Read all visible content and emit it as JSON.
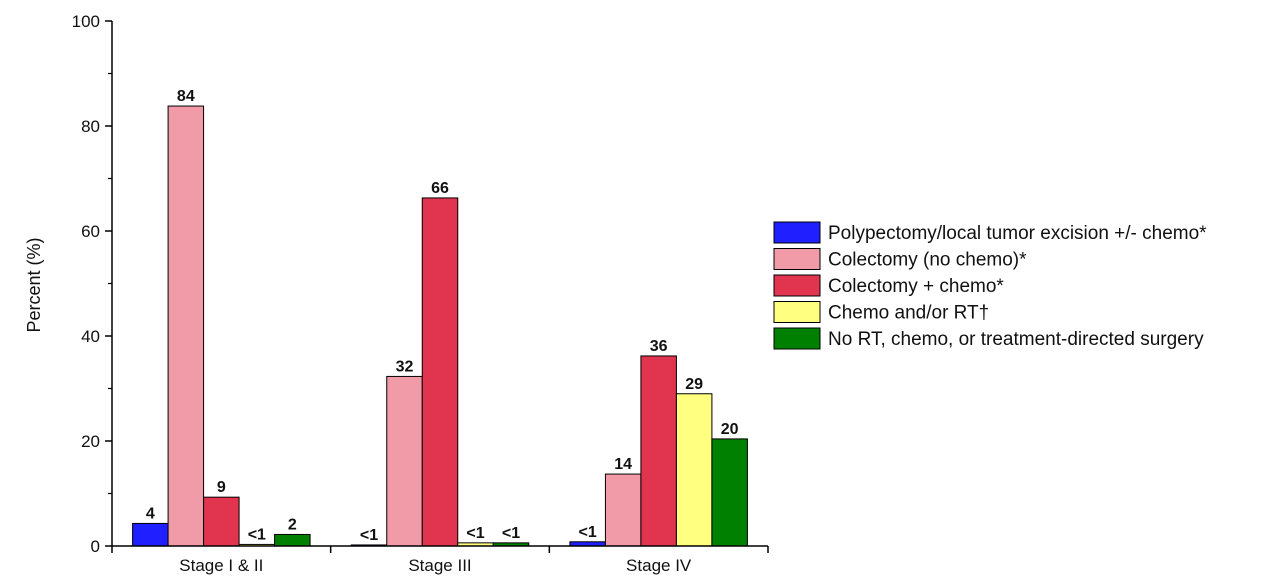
{
  "chart_data": {
    "type": "bar",
    "ylabel": "Percent (%)",
    "xlabel": "",
    "ylim": [
      0,
      100
    ],
    "yticks": [
      "0",
      "20",
      "40",
      "60",
      "80",
      "100"
    ],
    "ytick_values": [
      0,
      20,
      40,
      60,
      80,
      100
    ],
    "grid": false,
    "legend_position": "right",
    "categories": [
      "Stage I & II",
      "Stage III",
      "Stage IV"
    ],
    "series": [
      {
        "name": "Polypectomy/local tumor excision +/- chemo*",
        "color": "#1f1fff",
        "values": [
          4.3,
          0.2,
          0.8
        ],
        "labels": [
          "4",
          "<1",
          "<1"
        ]
      },
      {
        "name": "Colectomy (no chemo)*",
        "color": "#f19aa8",
        "values": [
          83.8,
          32.3,
          13.7
        ],
        "labels": [
          "84",
          "32",
          "14"
        ]
      },
      {
        "name": "Colectomy + chemo*",
        "color": "#e0344f",
        "values": [
          9.3,
          66.3,
          36.2
        ],
        "labels": [
          "9",
          "66",
          "36"
        ]
      },
      {
        "name": "Chemo and/or RT†",
        "color": "#ffff80",
        "values": [
          0.3,
          0.6,
          29.0
        ],
        "labels": [
          "<1",
          "<1",
          "29"
        ]
      },
      {
        "name": "No RT, chemo, or treatment-directed surgery",
        "color": "#008000",
        "values": [
          2.2,
          0.6,
          20.4
        ],
        "labels": [
          "2",
          "<1",
          "20"
        ]
      }
    ]
  }
}
